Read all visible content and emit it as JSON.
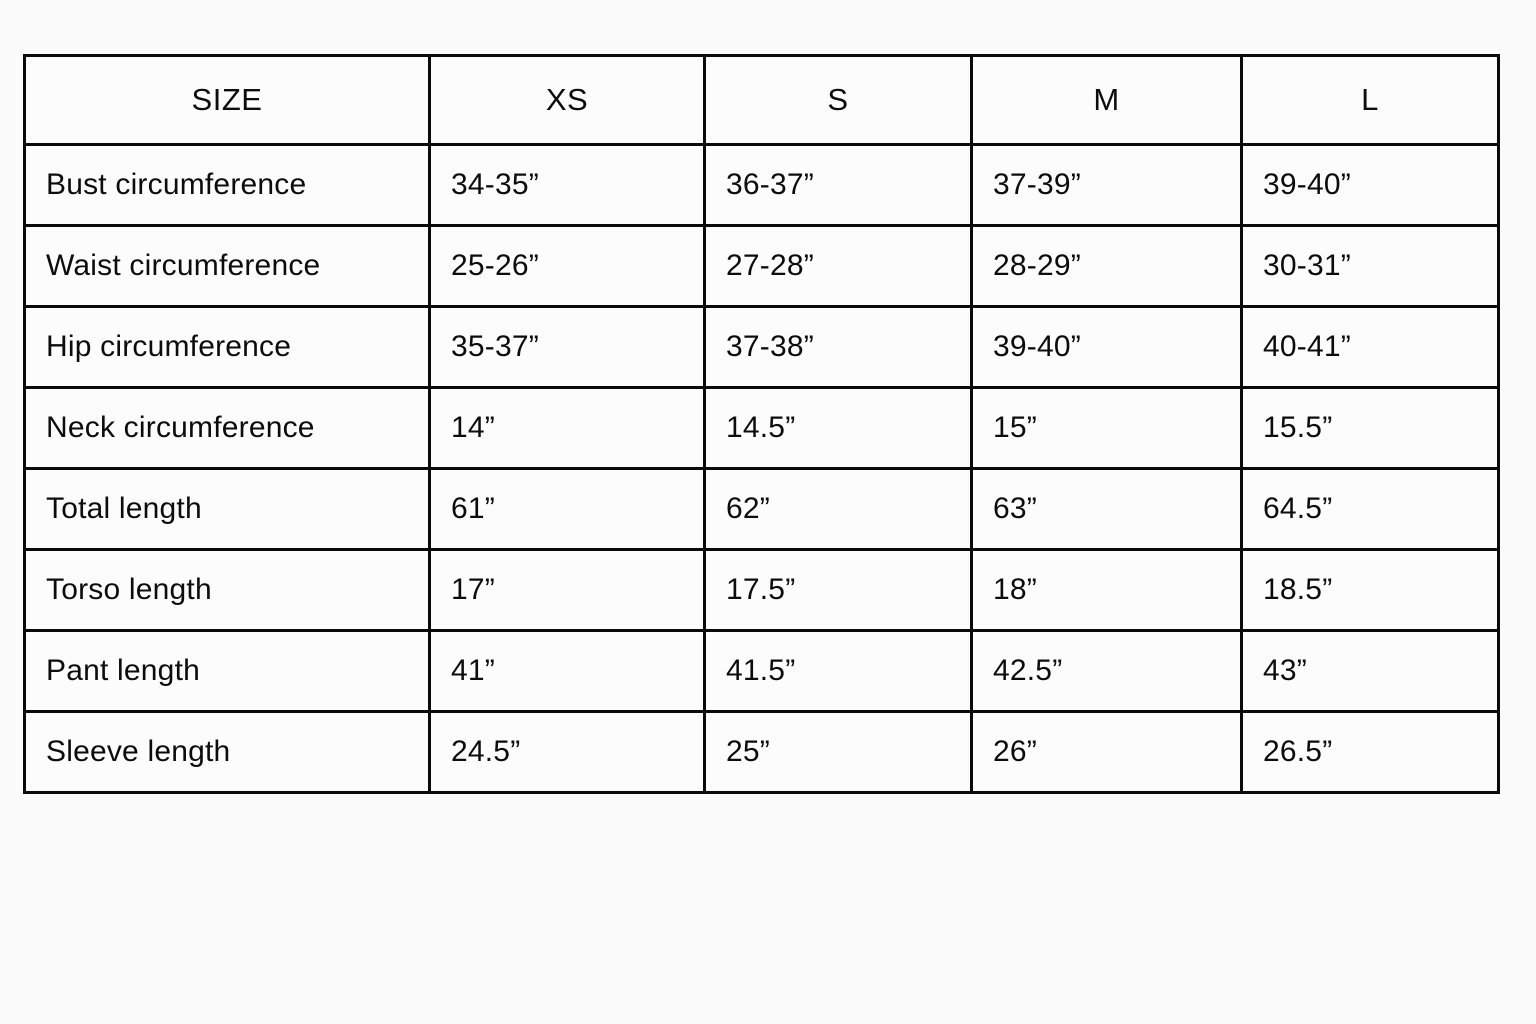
{
  "table": {
    "header": {
      "size": "SIZE",
      "xs": "XS",
      "s": "S",
      "m": "M",
      "l": "L"
    },
    "rows": [
      {
        "label": "Bust circumference",
        "values": [
          "34-35”",
          "36-37”",
          "37-39”",
          "39-40”"
        ]
      },
      {
        "label": "Waist circumference",
        "values": [
          "25-26”",
          "27-28”",
          "28-29”",
          "30-31”"
        ]
      },
      {
        "label": "Hip circumference",
        "values": [
          "35-37”",
          "37-38”",
          "39-40”",
          "40-41”"
        ]
      },
      {
        "label": "Neck circumference",
        "values": [
          "14”",
          "14.5”",
          "15”",
          "15.5”"
        ]
      },
      {
        "label": "Total length",
        "values": [
          "61”",
          "62”",
          "63”",
          "64.5”"
        ]
      },
      {
        "label": "Torso length",
        "values": [
          "17”",
          "17.5”",
          "18”",
          "18.5”"
        ]
      },
      {
        "label": "Pant length",
        "values": [
          "41”",
          "41.5”",
          "42.5”",
          "43”"
        ]
      },
      {
        "label": "Sleeve length",
        "values": [
          "24.5”",
          "25”",
          "26”",
          "26.5”"
        ]
      }
    ],
    "colors": {
      "border": "#0a0a0a",
      "cell_background": "#fcfcfc",
      "text": "#0c0c0c"
    }
  }
}
